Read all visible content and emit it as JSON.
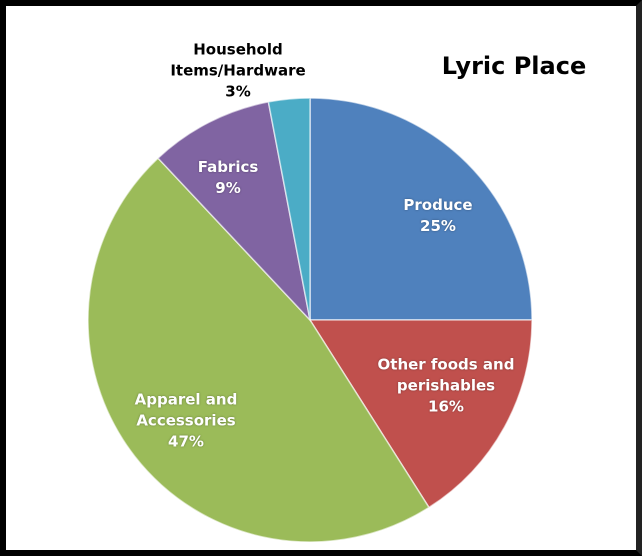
{
  "chart_data": {
    "type": "pie",
    "title": "Lyric Place",
    "categories": [
      "Produce",
      "Other foods and perishables",
      "Apparel and Accessories",
      "Fabrics",
      "Household Items/Hardware"
    ],
    "values": [
      25,
      16,
      47,
      9,
      3
    ],
    "value_labels": [
      "25%",
      "16%",
      "47%",
      "9%",
      "3%"
    ],
    "colors": [
      "#4f81bd",
      "#c0504d",
      "#9bbb59",
      "#8064a2",
      "#4bacc6"
    ]
  }
}
